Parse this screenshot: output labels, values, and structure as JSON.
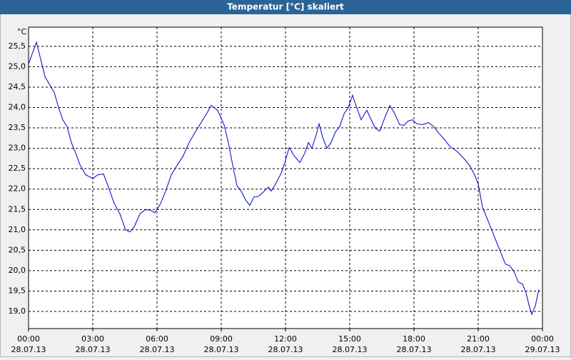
{
  "chart_data": {
    "type": "line",
    "title": "Temperatur [°C] skaliert",
    "y_unit": "°C",
    "xlim": [
      0,
      24
    ],
    "xticks": [
      {
        "value": 0,
        "label": "00:00"
      },
      {
        "value": 3,
        "label": "03:00"
      },
      {
        "value": 6,
        "label": "06:00"
      },
      {
        "value": 9,
        "label": "09:00"
      },
      {
        "value": 12,
        "label": "12:00"
      },
      {
        "value": 15,
        "label": "15:00"
      },
      {
        "value": 18,
        "label": "18:00"
      },
      {
        "value": 21,
        "label": "21:00"
      },
      {
        "value": 24,
        "label": "00:00"
      }
    ],
    "xtick_dates": [
      "28.07.13",
      "28.07.13",
      "28.07.13",
      "28.07.13",
      "28.07.13",
      "28.07.13",
      "28.07.13",
      "28.07.13",
      "29.07.13"
    ],
    "ylim": [
      18.58,
      25.97
    ],
    "yticks": [
      {
        "value": 19,
        "label": "19,0"
      },
      {
        "value": 19.5,
        "label": "19,5"
      },
      {
        "value": 20,
        "label": "20,0"
      },
      {
        "value": 20.5,
        "label": "20,5"
      },
      {
        "value": 21,
        "label": "21,0"
      },
      {
        "value": 21.5,
        "label": "21,5"
      },
      {
        "value": 22,
        "label": "22,0"
      },
      {
        "value": 22.5,
        "label": "22,5"
      },
      {
        "value": 23,
        "label": "23,0"
      },
      {
        "value": 23.5,
        "label": "23,5"
      },
      {
        "value": 24,
        "label": "24,0"
      },
      {
        "value": 24.5,
        "label": "24,5"
      },
      {
        "value": 25,
        "label": "25,0"
      },
      {
        "value": 25.5,
        "label": "25,5"
      }
    ],
    "grid": true,
    "series": [
      {
        "color": "#0000cc",
        "x": [
          0,
          0.37,
          0.77,
          1.2,
          1.4,
          1.6,
          1.8,
          2.0,
          2.2,
          2.4,
          2.67,
          3.0,
          3.23,
          3.5,
          3.73,
          4.0,
          4.27,
          4.53,
          4.73,
          4.93,
          5.2,
          5.43,
          5.67,
          5.9,
          6.17,
          6.4,
          6.67,
          6.93,
          7.2,
          7.5,
          7.73,
          8.0,
          8.27,
          8.53,
          8.83,
          9.13,
          9.33,
          9.53,
          9.73,
          9.93,
          10.13,
          10.33,
          10.53,
          10.73,
          10.93,
          11.2,
          11.33,
          11.53,
          11.8,
          12.0,
          12.17,
          12.4,
          12.67,
          12.9,
          13.07,
          13.23,
          13.43,
          13.57,
          13.73,
          13.93,
          14.13,
          14.33,
          14.53,
          14.73,
          14.93,
          15.13,
          15.33,
          15.53,
          15.8,
          16.0,
          16.2,
          16.4,
          16.6,
          16.87,
          17.07,
          17.33,
          17.53,
          17.73,
          17.93,
          18.13,
          18.4,
          18.67,
          18.93,
          19.13,
          19.4,
          19.67,
          20.0,
          20.33,
          20.6,
          20.83,
          21.0,
          21.2,
          21.4,
          21.6,
          21.87,
          22.07,
          22.27,
          22.47,
          22.67,
          22.87,
          23.07,
          23.23,
          23.4,
          23.5,
          23.67,
          23.83
        ],
        "values": [
          25.07,
          25.6,
          24.75,
          24.37,
          24.0,
          23.7,
          23.53,
          23.14,
          22.88,
          22.6,
          22.35,
          22.26,
          22.35,
          22.37,
          22.05,
          21.65,
          21.39,
          21.0,
          20.95,
          21.07,
          21.39,
          21.49,
          21.49,
          21.42,
          21.65,
          21.95,
          22.35,
          22.58,
          22.79,
          23.14,
          23.35,
          23.58,
          23.81,
          24.05,
          23.93,
          23.58,
          23.14,
          22.6,
          22.09,
          21.95,
          21.74,
          21.6,
          21.81,
          21.82,
          21.91,
          22.05,
          21.95,
          22.12,
          22.39,
          22.7,
          23.02,
          22.82,
          22.65,
          22.88,
          23.14,
          23.0,
          23.32,
          23.6,
          23.28,
          23.0,
          23.14,
          23.4,
          23.53,
          23.84,
          24.0,
          24.3,
          24.0,
          23.7,
          23.93,
          23.7,
          23.49,
          23.42,
          23.7,
          24.05,
          23.88,
          23.58,
          23.56,
          23.67,
          23.7,
          23.6,
          23.58,
          23.63,
          23.53,
          23.39,
          23.23,
          23.05,
          22.93,
          22.75,
          22.58,
          22.35,
          22.12,
          21.56,
          21.3,
          21.04,
          20.68,
          20.42,
          20.16,
          20.12,
          19.98,
          19.72,
          19.67,
          19.46,
          19.1,
          18.93,
          19.14,
          19.54
        ]
      }
    ]
  }
}
